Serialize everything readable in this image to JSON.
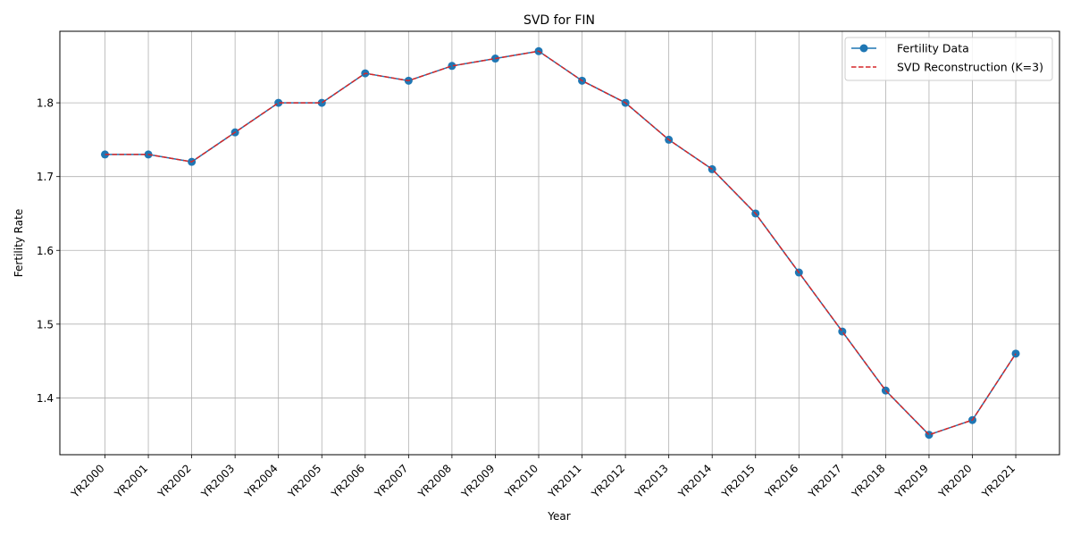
{
  "chart_data": {
    "type": "line",
    "title": "SVD for FIN",
    "xlabel": "Year",
    "ylabel": "Fertility Rate",
    "categories": [
      "YR2000",
      "YR2001",
      "YR2002",
      "YR2003",
      "YR2004",
      "YR2005",
      "YR2006",
      "YR2007",
      "YR2008",
      "YR2009",
      "YR2010",
      "YR2011",
      "YR2012",
      "YR2013",
      "YR2014",
      "YR2015",
      "YR2016",
      "YR2017",
      "YR2018",
      "YR2019",
      "YR2020",
      "YR2021"
    ],
    "ylim": [
      1.323,
      1.897
    ],
    "yticks": [
      "1.4",
      "1.5",
      "1.6",
      "1.7",
      "1.8"
    ],
    "grid": true,
    "legend_position": "top-right",
    "series": [
      {
        "name": "Fertility Data",
        "color": "#1f77b4",
        "style": "solid-with-markers",
        "values": [
          1.73,
          1.73,
          1.72,
          1.76,
          1.8,
          1.8,
          1.84,
          1.83,
          1.85,
          1.86,
          1.87,
          1.83,
          1.8,
          1.75,
          1.71,
          1.65,
          1.57,
          1.49,
          1.41,
          1.35,
          1.37,
          1.46
        ]
      },
      {
        "name": "SVD Reconstruction (K=3)",
        "color": "#d62728",
        "style": "dashed",
        "values": [
          1.73,
          1.73,
          1.72,
          1.76,
          1.8,
          1.8,
          1.84,
          1.83,
          1.85,
          1.86,
          1.87,
          1.83,
          1.8,
          1.75,
          1.71,
          1.65,
          1.57,
          1.49,
          1.41,
          1.35,
          1.37,
          1.46
        ]
      }
    ]
  }
}
